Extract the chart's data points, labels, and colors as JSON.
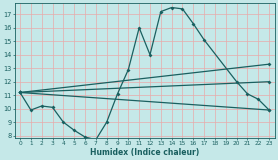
{
  "xlabel": "Humidex (Indice chaleur)",
  "background_color": "#c5e8e8",
  "grid_color": "#e8aaaa",
  "line_color": "#1a6060",
  "xlim": [
    -0.5,
    23.5
  ],
  "ylim": [
    7.8,
    17.8
  ],
  "yticks": [
    8,
    9,
    10,
    11,
    12,
    13,
    14,
    15,
    16,
    17
  ],
  "xticks": [
    0,
    1,
    2,
    3,
    4,
    5,
    6,
    7,
    8,
    9,
    10,
    11,
    12,
    13,
    14,
    15,
    16,
    17,
    18,
    19,
    20,
    21,
    22,
    23
  ],
  "curve_x": [
    0,
    1,
    2,
    3,
    4,
    5,
    6,
    7,
    8,
    9,
    10,
    11,
    12,
    13,
    14,
    15,
    16,
    17,
    20,
    21,
    22,
    23
  ],
  "curve_y": [
    11.2,
    9.9,
    10.2,
    10.1,
    9.0,
    8.4,
    7.9,
    7.7,
    9.0,
    11.1,
    12.9,
    16.0,
    14.0,
    17.2,
    17.5,
    17.4,
    16.3,
    15.1,
    12.0,
    11.1,
    10.7,
    9.9
  ],
  "line2_x": [
    0,
    23
  ],
  "line2_y": [
    11.2,
    9.9
  ],
  "line3_x": [
    0,
    23
  ],
  "line3_y": [
    11.2,
    13.3
  ],
  "line4_x": [
    0,
    23
  ],
  "line4_y": [
    11.2,
    12.0
  ],
  "marker_size": 2.0,
  "line_width": 0.9
}
